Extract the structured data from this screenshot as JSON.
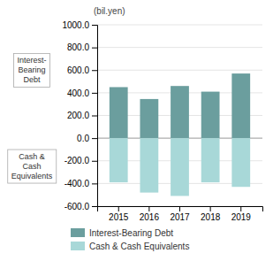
{
  "chart_data": {
    "type": "bar",
    "stacked": true,
    "y_label": "(bil.yen)",
    "categories": [
      "2015",
      "2016",
      "2017",
      "2018",
      "2019"
    ],
    "series": [
      {
        "name": "Interest-Bearing Debt",
        "color": "#6b9e9e",
        "values": [
          450,
          345,
          460,
          410,
          570
        ]
      },
      {
        "name": "Cash & Cash Equivalents",
        "color": "#a8d8d8",
        "values": [
          -390,
          -480,
          -510,
          -390,
          -430
        ]
      }
    ],
    "ylim": [
      -600,
      1000
    ],
    "yticks": [
      {
        "value": -600,
        "label": "-600.0"
      },
      {
        "value": -400,
        "label": "-400.0"
      },
      {
        "value": -200,
        "label": "-200.0"
      },
      {
        "value": 0,
        "label": "0.0"
      },
      {
        "value": 200,
        "label": "200.0"
      },
      {
        "value": 400,
        "label": "400.0"
      },
      {
        "value": 600,
        "label": "600.0"
      },
      {
        "value": 800,
        "label": "800.0"
      },
      {
        "value": 1000,
        "label": "1000.0"
      }
    ],
    "annotations": [
      "Interest-\nBearing\nDebt",
      "Cash &\nCash\nEquivalents"
    ],
    "grid": true,
    "legend": "bottom"
  }
}
